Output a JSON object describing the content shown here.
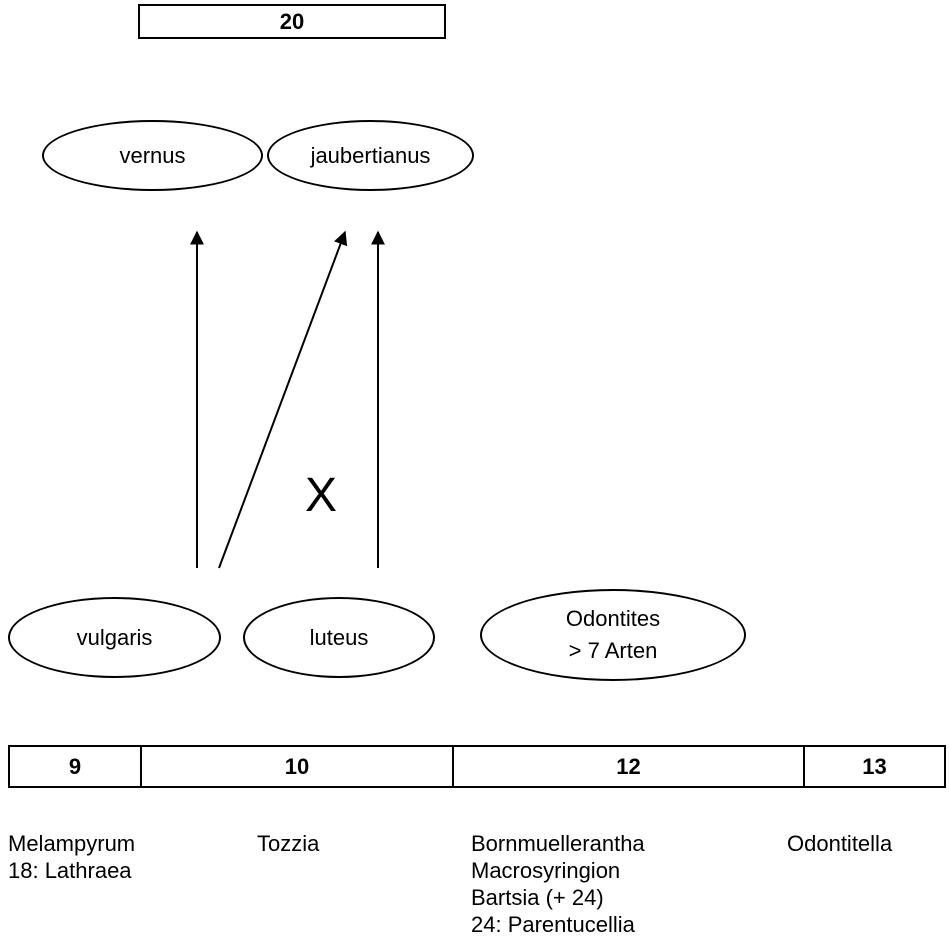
{
  "top_box": {
    "label": "20"
  },
  "upper_taxa": [
    {
      "label": "vernus"
    },
    {
      "label": "jaubertianus"
    }
  ],
  "lower_taxa": [
    {
      "label": "vulgaris"
    },
    {
      "label": "luteus"
    },
    {
      "label_line1": "Odontites",
      "label_line2": "> 7 Arten"
    }
  ],
  "cross_mark": "X",
  "chromosome_row": [
    "9",
    "10",
    "12",
    "13"
  ],
  "genera_columns": [
    {
      "text": "Melampyrum\n18: Lathraea"
    },
    {
      "text": "Tozzia"
    },
    {
      "text": "Bornmuellerantha\nMacrosyringion\nBartsia (+ 24)\n24: Parentucellia"
    },
    {
      "text": "Odontitella"
    }
  ]
}
